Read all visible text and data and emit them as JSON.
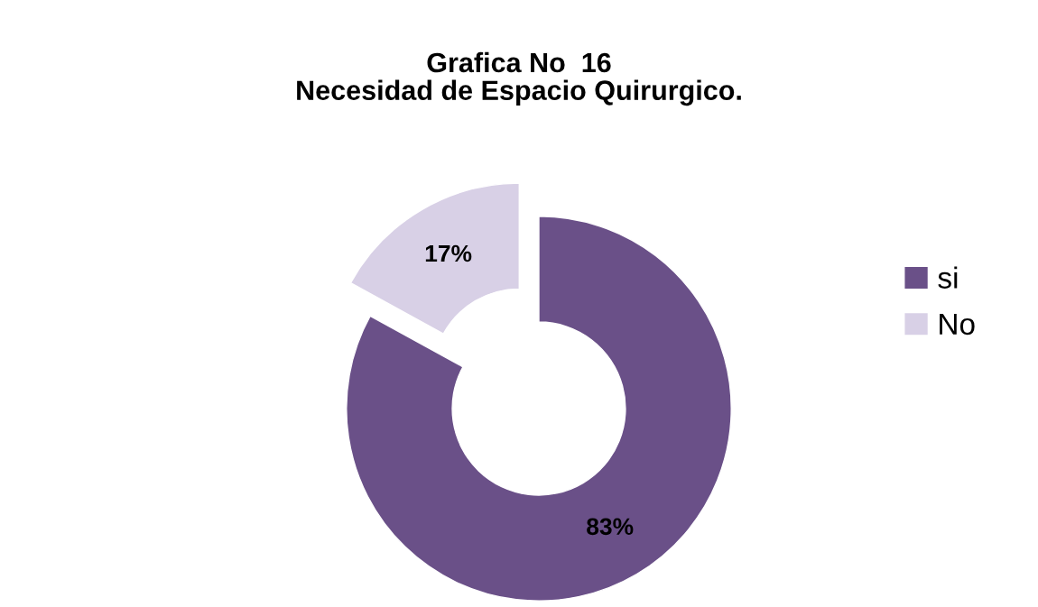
{
  "chart_data": {
    "type": "donut",
    "title": "Grafica No  16\nNecesidad de Espacio Quirurgico.",
    "categories": [
      "si",
      "No"
    ],
    "values": [
      83,
      17
    ],
    "colors": [
      "#6a5088",
      "#d8d0e6"
    ],
    "value_labels": [
      "83%",
      "17%"
    ],
    "legend": "right"
  }
}
